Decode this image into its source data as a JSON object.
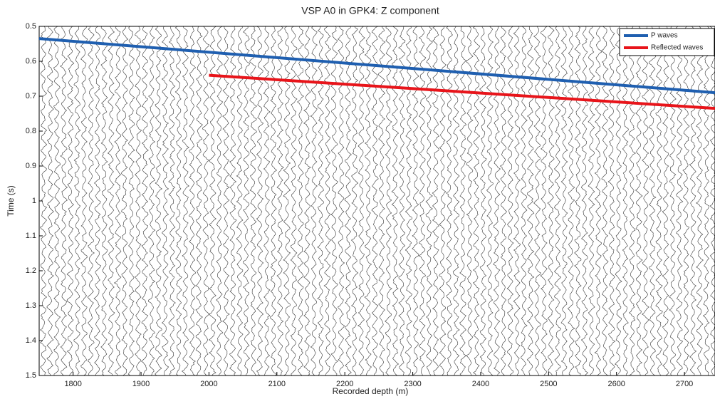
{
  "chart_data": {
    "type": "line",
    "title": "VSP A0 in GPK4: Z component",
    "x_label": "Recorded depth (m)",
    "y_label": "Time (s)",
    "y_inverted": true,
    "legend": "upper right",
    "xlim": [
      1750,
      2745
    ],
    "xticks": [
      1800,
      1900,
      2000,
      2100,
      2200,
      2300,
      2400,
      2500,
      2600,
      2700
    ],
    "ylim": [
      0.5,
      1.5
    ],
    "yticks": [
      0.5,
      0.6,
      0.7,
      0.8,
      0.9,
      1,
      1.1,
      1.2,
      1.3,
      1.4,
      1.5
    ],
    "series": [
      {
        "name": "P waves",
        "color": "#1f5fb0",
        "x": [
          1750,
          2745
        ],
        "values": [
          0.535,
          0.69
        ]
      },
      {
        "name": "Reflected waves",
        "color": "#e8141a",
        "x": [
          2000,
          2745
        ],
        "values": [
          0.64,
          0.735
        ]
      }
    ]
  }
}
